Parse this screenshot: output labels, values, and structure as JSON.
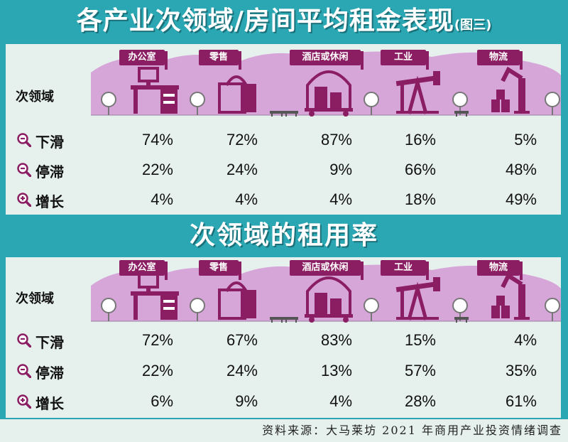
{
  "titles": {
    "main": "各产业次领域/房间平均租金表现",
    "main_note": "(图三)",
    "second": "次领域的租用率"
  },
  "colors": {
    "background": "#2aa7b3",
    "panel": "#e6f1ed",
    "accent": "#8b1e63",
    "illustration": "#d7a6d9"
  },
  "sector_label": "次领域",
  "categories": [
    "办公室",
    "零售",
    "酒店或休闲",
    "工业",
    "物流"
  ],
  "icons": [
    "office-desk-icon",
    "shopping-bag-icon",
    "hotel-cart-icon",
    "oil-pump-icon",
    "robot-arm-icon"
  ],
  "row_labels": [
    "下滑",
    "停滞",
    "增长"
  ],
  "row_icons": [
    "minus-magnifier-icon",
    "minus-magnifier-icon",
    "plus-magnifier-icon"
  ],
  "chart_data": [
    {
      "type": "table",
      "title": "各产业次领域/房间平均租金表现(图三)",
      "categories": [
        "办公室",
        "零售",
        "酒店或休闲",
        "工业",
        "物流"
      ],
      "series": [
        {
          "name": "下滑",
          "values": [
            "74%",
            "72%",
            "87%",
            "16%",
            "5%"
          ]
        },
        {
          "name": "停滞",
          "values": [
            "22%",
            "24%",
            "9%",
            "66%",
            "48%"
          ]
        },
        {
          "name": "增长",
          "values": [
            "4%",
            "4%",
            "4%",
            "18%",
            "49%"
          ]
        }
      ]
    },
    {
      "type": "table",
      "title": "次领域的租用率",
      "categories": [
        "办公室",
        "零售",
        "酒店或休闲",
        "工业",
        "物流"
      ],
      "series": [
        {
          "name": "下滑",
          "values": [
            "72%",
            "67%",
            "83%",
            "15%",
            "4%"
          ]
        },
        {
          "name": "停滞",
          "values": [
            "22%",
            "24%",
            "13%",
            "57%",
            "35%"
          ]
        },
        {
          "name": "增长",
          "values": [
            "6%",
            "9%",
            "4%",
            "28%",
            "61%"
          ]
        }
      ]
    }
  ],
  "source": "资料来源：大马莱坊 2021 年商用产业投资情绪调查"
}
